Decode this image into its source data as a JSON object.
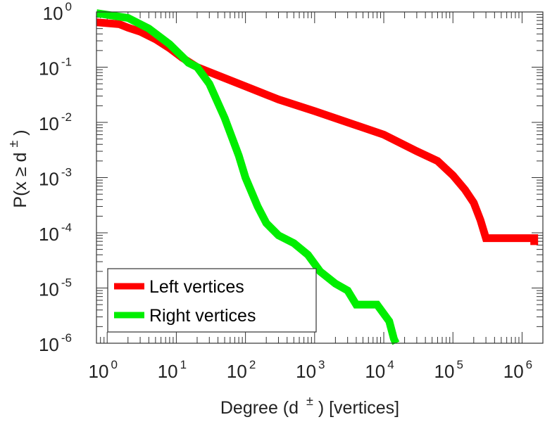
{
  "chart_data": {
    "type": "line",
    "title": "",
    "xscale": "log",
    "yscale": "log",
    "xlim": [
      0.7,
      2000000
    ],
    "ylim": [
      1e-06,
      1
    ],
    "xlabel": {
      "prefix": "Degree (d",
      "sup": "±",
      "suffix": ") [vertices]"
    },
    "ylabel": {
      "prefix": "P(x ≥ d",
      "sup": "±",
      "suffix": ")"
    },
    "x_ticks": [
      {
        "base": "10",
        "exp": "0",
        "value": 1
      },
      {
        "base": "10",
        "exp": "1",
        "value": 10
      },
      {
        "base": "10",
        "exp": "2",
        "value": 100
      },
      {
        "base": "10",
        "exp": "3",
        "value": 1000
      },
      {
        "base": "10",
        "exp": "4",
        "value": 10000
      },
      {
        "base": "10",
        "exp": "5",
        "value": 100000
      },
      {
        "base": "10",
        "exp": "6",
        "value": 1000000
      }
    ],
    "y_ticks": [
      {
        "base": "10",
        "exp": "0",
        "value": 1
      },
      {
        "base": "10",
        "exp": "-1",
        "value": 0.1
      },
      {
        "base": "10",
        "exp": "-2",
        "value": 0.01
      },
      {
        "base": "10",
        "exp": "-3",
        "value": 0.001
      },
      {
        "base": "10",
        "exp": "-4",
        "value": 0.0001
      },
      {
        "base": "10",
        "exp": "-5",
        "value": 1e-05
      },
      {
        "base": "10",
        "exp": "-6",
        "value": 1e-06
      }
    ],
    "grid": false,
    "legend_position": "bottom-left",
    "series": [
      {
        "name": "Left vertices",
        "color": "#ff0000",
        "points": [
          [
            0.7,
            0.65
          ],
          [
            1.5,
            0.6
          ],
          [
            2,
            0.52
          ],
          [
            3,
            0.44
          ],
          [
            5,
            0.32
          ],
          [
            8,
            0.22
          ],
          [
            12,
            0.15
          ],
          [
            20,
            0.1
          ],
          [
            40,
            0.071
          ],
          [
            100,
            0.045
          ],
          [
            300,
            0.026
          ],
          [
            1000,
            0.016
          ],
          [
            3000,
            0.01
          ],
          [
            10000,
            0.006
          ],
          [
            30000,
            0.003
          ],
          [
            60000,
            0.002
          ],
          [
            100000,
            0.0011
          ],
          [
            150000,
            0.0006
          ],
          [
            200000,
            0.00035
          ],
          [
            250000,
            0.00017
          ],
          [
            300000,
            8e-05
          ],
          [
            1500000,
            8e-05
          ],
          [
            1500000,
            6e-05
          ]
        ]
      },
      {
        "name": "Right vertices",
        "color": "#00ee00",
        "points": [
          [
            0.7,
            0.95
          ],
          [
            2,
            0.78
          ],
          [
            4,
            0.5
          ],
          [
            8,
            0.26
          ],
          [
            15,
            0.12
          ],
          [
            20,
            0.1
          ],
          [
            30,
            0.05
          ],
          [
            50,
            0.012
          ],
          [
            80,
            0.0025
          ],
          [
            100,
            0.001
          ],
          [
            150,
            0.0003
          ],
          [
            200,
            0.00015
          ],
          [
            300,
            9e-05
          ],
          [
            500,
            6.5e-05
          ],
          [
            800,
            4e-05
          ],
          [
            1200,
            2e-05
          ],
          [
            2000,
            1.2e-05
          ],
          [
            3000,
            9e-06
          ],
          [
            4000,
            5e-06
          ],
          [
            8000,
            5e-06
          ],
          [
            12000,
            2.5e-06
          ],
          [
            14000,
            1.2e-06
          ],
          [
            15000,
            1e-06
          ]
        ]
      }
    ]
  }
}
